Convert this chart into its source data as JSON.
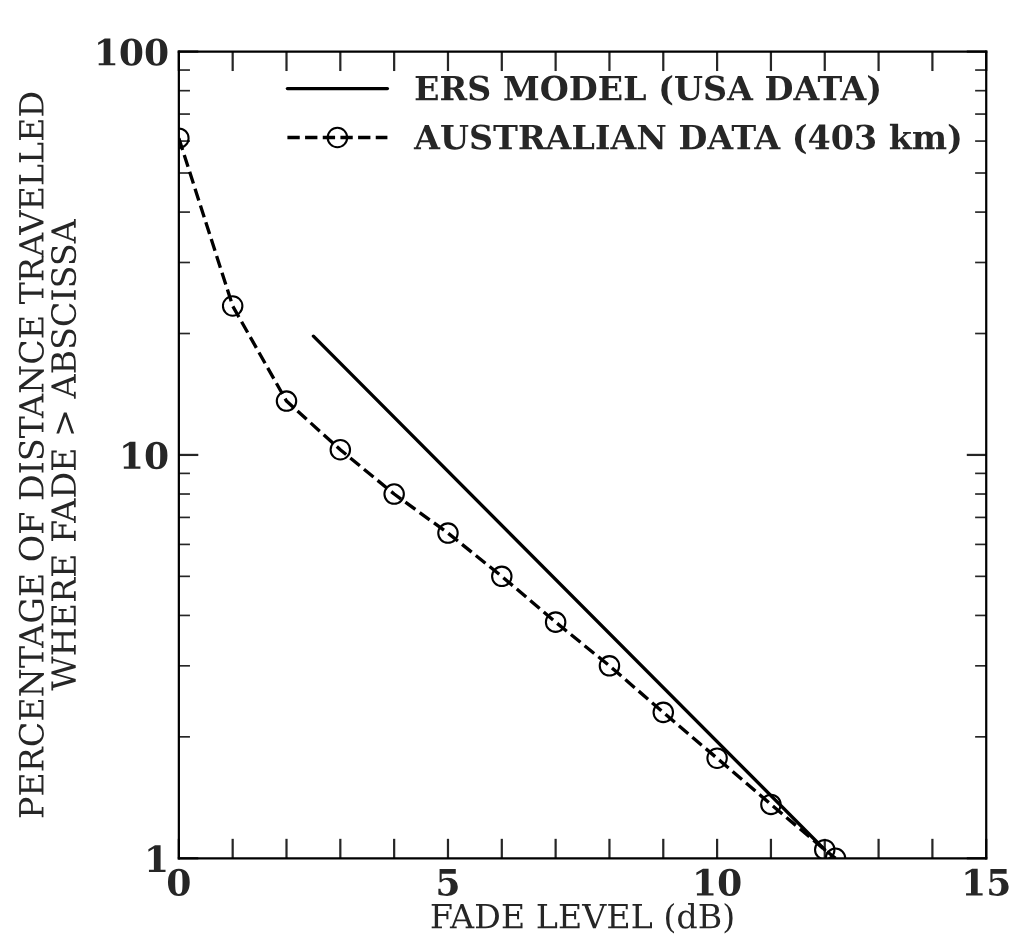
{
  "chart_data": {
    "type": "line",
    "xlabel": "FADE LEVEL (dB)",
    "ylabel": "PERCENTAGE OF DISTANCE TRAVELLED\nWHERE FADE > ABSCISSA",
    "log": "y",
    "xlim": [
      0,
      15
    ],
    "ylim": [
      1,
      100
    ],
    "xticks": [
      0,
      {
        "value": 1,
        "label": null
      },
      {
        "value": 2,
        "label": null
      },
      {
        "value": 3,
        "label": null
      },
      {
        "value": 4,
        "label": null
      },
      5,
      {
        "value": 6,
        "label": null
      },
      {
        "value": 7,
        "label": null
      },
      {
        "value": 8,
        "label": null
      },
      {
        "value": 9,
        "label": null
      },
      10,
      {
        "value": 11,
        "label": null
      },
      {
        "value": 12,
        "label": null
      },
      {
        "value": 13,
        "label": null
      },
      {
        "value": 14,
        "label": null
      },
      15
    ],
    "yticks": [
      1,
      10,
      100
    ],
    "grid": false,
    "legend": "top right",
    "series": [
      {
        "name": "ERS MODEL (USA DATA)",
        "color": "#000000",
        "x": [
          2.5,
          12
        ],
        "values": [
          19.7,
          1.05
        ],
        "line_style": "solid"
      },
      {
        "name": "AUSTRALIAN DATA (403 km)",
        "color": "#000000",
        "x": [
          0,
          1,
          2,
          3,
          4,
          5,
          6,
          7,
          8,
          9,
          10,
          11,
          12,
          12.2
        ],
        "values": [
          61,
          23.4,
          13.6,
          10.3,
          8.0,
          6.4,
          5.0,
          3.85,
          3.0,
          2.3,
          1.77,
          1.36,
          1.05,
          1.0
        ],
        "marker": "circle",
        "line_style": "dashed"
      }
    ]
  }
}
